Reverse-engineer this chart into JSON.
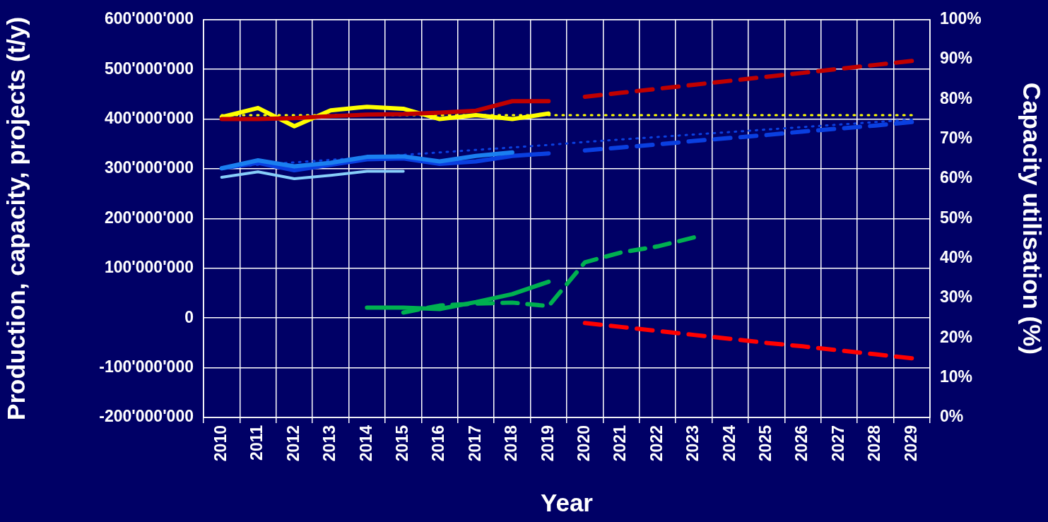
{
  "chart_data": {
    "type": "line",
    "xlabel": "Year",
    "ylabel": "Production, capacity, projects (t/y)",
    "y2label": "Capacity utilisation (%)",
    "categories": [
      "2010",
      "2011",
      "2012",
      "2013",
      "2014",
      "2015",
      "2016",
      "2017",
      "2018",
      "2019",
      "2020",
      "2021",
      "2022",
      "2023",
      "2024",
      "2025",
      "2026",
      "2027",
      "2028",
      "2029"
    ],
    "series": [
      {
        "color": "#c00000",
        "line_style": "solid",
        "values": [
          400000000,
          400000000,
          402000000,
          406000000,
          409000000,
          410000000,
          413000000,
          417000000,
          436000000,
          436000000,
          null,
          null,
          null,
          null,
          null,
          null,
          null,
          null,
          null,
          null
        ]
      },
      {
        "color": "#c00000",
        "line_style": "dashed",
        "values": [
          null,
          null,
          null,
          null,
          null,
          null,
          null,
          null,
          null,
          null,
          445000000,
          453000000,
          461000000,
          469000000,
          477000000,
          485000000,
          493000000,
          501000000,
          509000000,
          517000000
        ]
      },
      {
        "color": "#ff0000",
        "line_style": "dashed",
        "values": [
          null,
          null,
          null,
          null,
          null,
          null,
          null,
          null,
          null,
          null,
          -10000000,
          -18000000,
          -26000000,
          -34000000,
          -42000000,
          -50000000,
          -57000000,
          -65000000,
          -73000000,
          -81000000
        ]
      },
      {
        "color": "#87cefa",
        "line_style": "solid",
        "values": [
          283000000,
          294000000,
          280000000,
          287000000,
          295000000,
          295000000,
          null,
          null,
          null,
          null,
          null,
          null,
          null,
          null,
          null,
          null,
          null,
          null,
          null,
          null
        ]
      },
      {
        "color": "#1a7ff0",
        "line_style": "solid",
        "values": [
          301000000,
          317000000,
          305000000,
          312000000,
          324000000,
          325000000,
          315000000,
          326000000,
          333000000,
          null,
          null,
          null,
          null,
          null,
          null,
          null,
          null,
          null,
          null,
          null
        ]
      },
      {
        "color": "#0a3fe0",
        "line_style": "solid",
        "values": [
          301000000,
          312000000,
          297000000,
          308000000,
          319000000,
          321000000,
          310000000,
          315000000,
          326000000,
          331000000,
          null,
          null,
          null,
          null,
          null,
          null,
          null,
          null,
          null,
          null
        ]
      },
      {
        "color": "#0a3fe0",
        "line_style": "dashed",
        "values": [
          null,
          null,
          null,
          null,
          null,
          null,
          null,
          null,
          null,
          null,
          337000000,
          343000000,
          349000000,
          356000000,
          362000000,
          368000000,
          375000000,
          381000000,
          387000000,
          394000000
        ]
      },
      {
        "color": "#0a3fe0",
        "line_style": "dotted",
        "values": [
          303000000,
          308000000,
          313000000,
          318000000,
          323000000,
          328000000,
          333000000,
          338000000,
          343000000,
          348000000,
          354000000,
          359000000,
          364000000,
          369000000,
          374000000,
          379000000,
          384000000,
          389000000,
          394000000,
          399000000
        ]
      },
      {
        "color": "#00b050",
        "line_style": "solid",
        "values": [
          null,
          null,
          null,
          null,
          21000000,
          21000000,
          18000000,
          32000000,
          48000000,
          73000000,
          null,
          null,
          null,
          null,
          null,
          null,
          null,
          null,
          null,
          null
        ]
      },
      {
        "color": "#00b050",
        "line_style": "dashed",
        "values": [
          null,
          null,
          null,
          null,
          null,
          11000000,
          25000000,
          29000000,
          31000000,
          24000000,
          112000000,
          132000000,
          144000000,
          162000000,
          null,
          null,
          null,
          null,
          null,
          null
        ]
      },
      {
        "color": "#ffff00",
        "line_style": "solid",
        "axis": "y2",
        "values": [
          75.5,
          77.8,
          73.2,
          77.2,
          78.1,
          77.6,
          75.0,
          76.0,
          75.0,
          76.4,
          null,
          null,
          null,
          null,
          null,
          null,
          null,
          null,
          null,
          null
        ]
      },
      {
        "color": "#ffff00",
        "line_style": "dotted",
        "axis": "y2",
        "values": [
          76,
          76,
          76,
          76,
          76,
          76,
          76,
          76,
          76,
          76,
          76,
          76,
          76,
          76,
          76,
          76,
          76,
          76,
          76,
          76
        ]
      }
    ],
    "ylim": [
      -200000000,
      600000000
    ],
    "yticks": [
      {
        "value": -200000000,
        "label": "-200'000'000"
      },
      {
        "value": -100000000,
        "label": "-100'000'000"
      },
      {
        "value": 0,
        "label": "0"
      },
      {
        "value": 100000000,
        "label": "100'000'000"
      },
      {
        "value": 200000000,
        "label": "200'000'000"
      },
      {
        "value": 300000000,
        "label": "300'000'000"
      },
      {
        "value": 400000000,
        "label": "400'000'000"
      },
      {
        "value": 500000000,
        "label": "500'000'000"
      },
      {
        "value": 600000000,
        "label": "600'000'000"
      }
    ],
    "y2lim": [
      0,
      100
    ],
    "y2ticks": [
      {
        "value": 0,
        "label": "0%"
      },
      {
        "value": 10,
        "label": "10%"
      },
      {
        "value": 20,
        "label": "20%"
      },
      {
        "value": 30,
        "label": "30%"
      },
      {
        "value": 40,
        "label": "40%"
      },
      {
        "value": 50,
        "label": "50%"
      },
      {
        "value": 60,
        "label": "60%"
      },
      {
        "value": 70,
        "label": "70%"
      },
      {
        "value": 80,
        "label": "80%"
      },
      {
        "value": 90,
        "label": "90%"
      },
      {
        "value": 100,
        "label": "100%"
      }
    ],
    "grid": true,
    "legend": false,
    "marker": "none"
  }
}
